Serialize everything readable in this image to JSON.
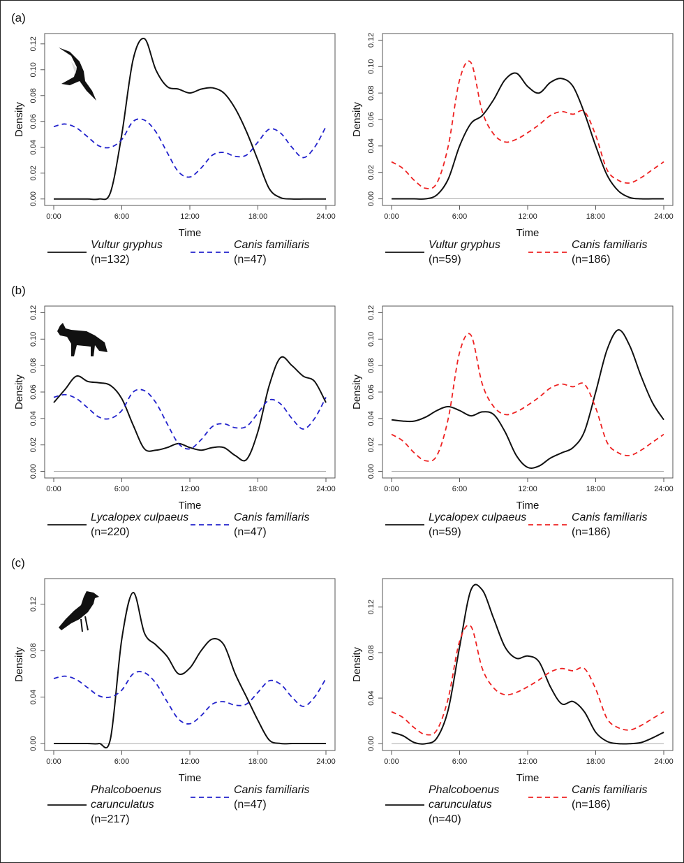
{
  "chart_data": [
    {
      "type": "line",
      "panel_label": "(a)",
      "xlabel": "Time",
      "ylabel": "Density",
      "x": [
        0,
        1,
        2,
        3,
        4,
        5,
        6,
        7,
        8,
        9,
        10,
        11,
        12,
        13,
        14,
        15,
        16,
        17,
        18,
        19,
        20,
        21,
        22,
        23,
        24
      ],
      "xlim": [
        -0.8,
        24.8
      ],
      "xticks": [
        {
          "value": 0,
          "label": "0:00"
        },
        {
          "value": 6,
          "label": "6:00"
        },
        {
          "value": 12,
          "label": "12:00"
        },
        {
          "value": 18,
          "label": "18:00"
        },
        {
          "value": 24,
          "label": "24:00"
        }
      ],
      "ylim": [
        -0.005,
        0.128
      ],
      "yticks": [
        {
          "value": 0,
          "label": "0.00"
        },
        0.02,
        0.04,
        0.06,
        0.08,
        {
          "value": 0.1,
          "label": "0.10"
        },
        0.12
      ],
      "series": [
        {
          "name": "Vultur gryphus",
          "sample": "(n=132)",
          "color": "#111111",
          "dashed": false,
          "values": [
            0,
            0,
            0,
            0,
            0,
            0.005,
            0.05,
            0.108,
            0.124,
            0.1,
            0.087,
            0.085,
            0.082,
            0.085,
            0.086,
            0.082,
            0.07,
            0.052,
            0.03,
            0.008,
            0.001,
            0,
            0,
            0,
            0
          ]
        },
        {
          "name": "Canis familiaris",
          "sample": "(n=47)",
          "color": "#2222cc",
          "dashed": true,
          "values": [
            0.056,
            0.058,
            0.055,
            0.048,
            0.041,
            0.04,
            0.046,
            0.06,
            0.061,
            0.052,
            0.036,
            0.021,
            0.017,
            0.024,
            0.034,
            0.036,
            0.033,
            0.034,
            0.044,
            0.054,
            0.051,
            0.04,
            0.032,
            0.04,
            0.056
          ]
        }
      ]
    },
    {
      "type": "line",
      "xlabel": "Time",
      "ylabel": "Density",
      "x": [
        0,
        1,
        2,
        3,
        4,
        5,
        6,
        7,
        8,
        9,
        10,
        11,
        12,
        13,
        14,
        15,
        16,
        17,
        18,
        19,
        20,
        21,
        22,
        23,
        24
      ],
      "xlim": [
        -0.8,
        24.8
      ],
      "xticks": [
        {
          "value": 0,
          "label": "0:00"
        },
        {
          "value": 6,
          "label": "6:00"
        },
        {
          "value": 12,
          "label": "12:00"
        },
        {
          "value": 18,
          "label": "18:00"
        },
        {
          "value": 24,
          "label": "24:00"
        }
      ],
      "ylim": [
        -0.005,
        0.125
      ],
      "yticks": [
        {
          "value": 0,
          "label": "0.00"
        },
        0.02,
        0.04,
        0.06,
        0.08,
        {
          "value": 0.1,
          "label": "0.10"
        },
        0.12
      ],
      "series": [
        {
          "name": "Vultur gryphus",
          "sample": "(n=59)",
          "color": "#111111",
          "dashed": false,
          "values": [
            0,
            0,
            0,
            0,
            0.003,
            0.015,
            0.04,
            0.057,
            0.063,
            0.075,
            0.09,
            0.095,
            0.085,
            0.08,
            0.088,
            0.091,
            0.085,
            0.065,
            0.04,
            0.018,
            0.006,
            0.001,
            0,
            0,
            0
          ]
        },
        {
          "name": "Canis familiaris",
          "sample": "(n=186)",
          "color": "#ee2222",
          "dashed": true,
          "values": [
            0.028,
            0.023,
            0.014,
            0.008,
            0.012,
            0.04,
            0.09,
            0.103,
            0.066,
            0.049,
            0.043,
            0.045,
            0.05,
            0.056,
            0.063,
            0.066,
            0.064,
            0.066,
            0.048,
            0.022,
            0.014,
            0.012,
            0.016,
            0.022,
            0.028
          ]
        }
      ]
    },
    {
      "type": "line",
      "panel_label": "(b)",
      "xlabel": "Time",
      "ylabel": "Density",
      "x": [
        0,
        1,
        2,
        3,
        4,
        5,
        6,
        7,
        8,
        9,
        10,
        11,
        12,
        13,
        14,
        15,
        16,
        17,
        18,
        19,
        20,
        21,
        22,
        23,
        24
      ],
      "xlim": [
        -0.8,
        24.8
      ],
      "xticks": [
        {
          "value": 0,
          "label": "0:00"
        },
        {
          "value": 6,
          "label": "6:00"
        },
        {
          "value": 12,
          "label": "12:00"
        },
        {
          "value": 18,
          "label": "18:00"
        },
        {
          "value": 24,
          "label": "24:00"
        }
      ],
      "ylim": [
        -0.005,
        0.125
      ],
      "yticks": [
        {
          "value": 0,
          "label": "0.00"
        },
        0.02,
        0.04,
        0.06,
        0.08,
        {
          "value": 0.1,
          "label": "0.10"
        },
        0.12
      ],
      "series": [
        {
          "name": "Lycalopex culpaeus",
          "sample": "(n=220)",
          "color": "#111111",
          "dashed": false,
          "values": [
            0.052,
            0.062,
            0.072,
            0.068,
            0.067,
            0.065,
            0.055,
            0.035,
            0.017,
            0.016,
            0.018,
            0.021,
            0.018,
            0.016,
            0.018,
            0.018,
            0.012,
            0.009,
            0.03,
            0.065,
            0.086,
            0.08,
            0.072,
            0.068,
            0.052
          ]
        },
        {
          "name": "Canis familiaris",
          "sample": "(n=47)",
          "color": "#2222cc",
          "dashed": true,
          "values": [
            0.056,
            0.058,
            0.055,
            0.048,
            0.041,
            0.04,
            0.046,
            0.06,
            0.061,
            0.052,
            0.036,
            0.021,
            0.017,
            0.024,
            0.034,
            0.036,
            0.033,
            0.034,
            0.044,
            0.054,
            0.051,
            0.04,
            0.032,
            0.04,
            0.056
          ]
        }
      ]
    },
    {
      "type": "line",
      "xlabel": "Time",
      "ylabel": "Density",
      "x": [
        0,
        1,
        2,
        3,
        4,
        5,
        6,
        7,
        8,
        9,
        10,
        11,
        12,
        13,
        14,
        15,
        16,
        17,
        18,
        19,
        20,
        21,
        22,
        23,
        24
      ],
      "xlim": [
        -0.8,
        24.8
      ],
      "xticks": [
        {
          "value": 0,
          "label": "0:00"
        },
        {
          "value": 6,
          "label": "6:00"
        },
        {
          "value": 12,
          "label": "12:00"
        },
        {
          "value": 18,
          "label": "18:00"
        },
        {
          "value": 24,
          "label": "24:00"
        }
      ],
      "ylim": [
        -0.005,
        0.125
      ],
      "yticks": [
        {
          "value": 0,
          "label": "0.00"
        },
        0.02,
        0.04,
        0.06,
        0.08,
        {
          "value": 0.1,
          "label": "0.10"
        },
        0.12
      ],
      "series": [
        {
          "name": "Lycalopex culpaeus",
          "sample": "(n=59)",
          "color": "#111111",
          "dashed": false,
          "values": [
            0.039,
            0.038,
            0.038,
            0.041,
            0.046,
            0.049,
            0.046,
            0.042,
            0.045,
            0.043,
            0.03,
            0.012,
            0.003,
            0.004,
            0.01,
            0.014,
            0.018,
            0.03,
            0.06,
            0.092,
            0.107,
            0.095,
            0.072,
            0.052,
            0.039
          ]
        },
        {
          "name": "Canis familiaris",
          "sample": "(n=186)",
          "color": "#ee2222",
          "dashed": true,
          "values": [
            0.028,
            0.023,
            0.014,
            0.008,
            0.012,
            0.04,
            0.09,
            0.103,
            0.066,
            0.049,
            0.043,
            0.045,
            0.05,
            0.056,
            0.063,
            0.066,
            0.064,
            0.066,
            0.048,
            0.022,
            0.014,
            0.012,
            0.016,
            0.022,
            0.028
          ]
        }
      ]
    },
    {
      "type": "line",
      "panel_label": "(c)",
      "xlabel": "Time",
      "ylabel": "Density",
      "x": [
        0,
        1,
        2,
        3,
        4,
        5,
        6,
        7,
        8,
        9,
        10,
        11,
        12,
        13,
        14,
        15,
        16,
        17,
        18,
        19,
        20,
        21,
        22,
        23,
        24
      ],
      "xlim": [
        -0.8,
        24.8
      ],
      "xticks": [
        {
          "value": 0,
          "label": "0:00"
        },
        {
          "value": 6,
          "label": "6:00"
        },
        {
          "value": 12,
          "label": "12:00"
        },
        {
          "value": 18,
          "label": "18:00"
        },
        {
          "value": 24,
          "label": "24:00"
        }
      ],
      "ylim": [
        -0.006,
        0.142
      ],
      "yticks": [
        {
          "value": 0,
          "label": "0.00"
        },
        0.04,
        0.08,
        0.12
      ],
      "series": [
        {
          "name": "Phalcoboenus carunculatus",
          "sample": "(n=217)",
          "color": "#111111",
          "dashed": false,
          "values": [
            0,
            0,
            0,
            0,
            0,
            0.004,
            0.09,
            0.13,
            0.095,
            0.085,
            0.075,
            0.06,
            0.065,
            0.08,
            0.09,
            0.085,
            0.06,
            0.04,
            0.02,
            0.003,
            0,
            0,
            0,
            0,
            0
          ]
        },
        {
          "name": "Canis familiaris",
          "sample": "(n=47)",
          "color": "#2222cc",
          "dashed": true,
          "values": [
            0.056,
            0.058,
            0.055,
            0.048,
            0.041,
            0.04,
            0.046,
            0.06,
            0.061,
            0.052,
            0.036,
            0.021,
            0.017,
            0.024,
            0.034,
            0.036,
            0.033,
            0.034,
            0.044,
            0.054,
            0.051,
            0.04,
            0.032,
            0.04,
            0.056
          ]
        }
      ]
    },
    {
      "type": "line",
      "xlabel": "Time",
      "ylabel": "Density",
      "x": [
        0,
        1,
        2,
        3,
        4,
        5,
        6,
        7,
        8,
        9,
        10,
        11,
        12,
        13,
        14,
        15,
        16,
        17,
        18,
        19,
        20,
        21,
        22,
        23,
        24
      ],
      "xlim": [
        -0.8,
        24.8
      ],
      "xticks": [
        {
          "value": 0,
          "label": "0:00"
        },
        {
          "value": 6,
          "label": "6:00"
        },
        {
          "value": 12,
          "label": "12:00"
        },
        {
          "value": 18,
          "label": "18:00"
        },
        {
          "value": 24,
          "label": "24:00"
        }
      ],
      "ylim": [
        -0.006,
        0.145
      ],
      "yticks": [
        {
          "value": 0,
          "label": "0.00"
        },
        0.04,
        0.08,
        0.12
      ],
      "series": [
        {
          "name": "Phalcoboenus carunculatus",
          "sample": "(n=40)",
          "color": "#111111",
          "dashed": false,
          "values": [
            0.01,
            0.007,
            0.001,
            0,
            0.005,
            0.03,
            0.085,
            0.135,
            0.135,
            0.11,
            0.085,
            0.075,
            0.077,
            0.072,
            0.05,
            0.035,
            0.037,
            0.028,
            0.01,
            0.002,
            0,
            0,
            0.001,
            0.005,
            0.01
          ]
        },
        {
          "name": "Canis familiaris",
          "sample": "(n=186)",
          "color": "#ee2222",
          "dashed": true,
          "values": [
            0.028,
            0.023,
            0.014,
            0.008,
            0.012,
            0.04,
            0.09,
            0.103,
            0.066,
            0.049,
            0.043,
            0.045,
            0.05,
            0.056,
            0.063,
            0.066,
            0.064,
            0.066,
            0.048,
            0.022,
            0.014,
            0.012,
            0.016,
            0.022,
            0.028
          ]
        }
      ]
    }
  ]
}
